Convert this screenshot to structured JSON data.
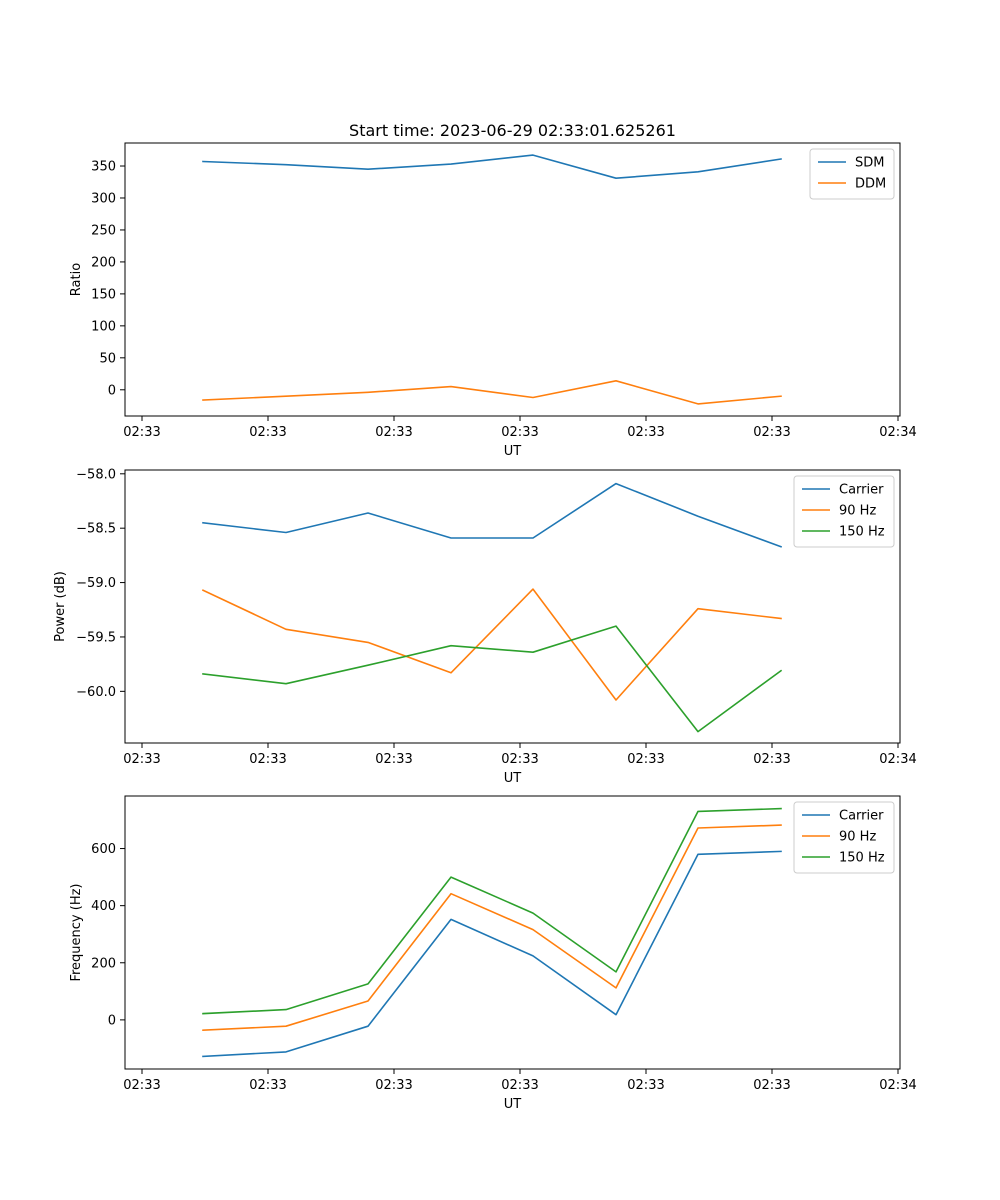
{
  "figure": {
    "title": "Start time: 2023-06-29 02:33:01.625261"
  },
  "chart_data": [
    {
      "type": "line",
      "xlabel": "UT",
      "ylabel": "Ratio",
      "x_tick_labels": [
        "02:33",
        "02:33",
        "02:33",
        "02:33",
        "02:33",
        "02:33",
        "02:34"
      ],
      "y_ticks": [
        0,
        50,
        100,
        150,
        200,
        250,
        300,
        350
      ],
      "y_tick_labels": [
        "0",
        "50",
        "100",
        "150",
        "200",
        "250",
        "300",
        "350"
      ],
      "ylim": [
        -41,
        386
      ],
      "legend": "top-right",
      "series": [
        {
          "name": "SDM",
          "color": "#1f77b4",
          "values": [
            357,
            352,
            345,
            353,
            367,
            331,
            341,
            361
          ]
        },
        {
          "name": "DDM",
          "color": "#ff7f0e",
          "values": [
            -16,
            -10,
            -4,
            5,
            -12,
            14,
            -22,
            -10
          ]
        }
      ]
    },
    {
      "type": "line",
      "xlabel": "UT",
      "ylabel": "Power (dB)",
      "x_tick_labels": [
        "02:33",
        "02:33",
        "02:33",
        "02:33",
        "02:33",
        "02:33",
        "02:34"
      ],
      "y_ticks": [
        -60.0,
        -59.5,
        -59.0,
        -58.5,
        -58.0
      ],
      "y_tick_labels": [
        "−60.0",
        "−59.5",
        "−59.0",
        "−58.5",
        "−58.0"
      ],
      "ylim": [
        -60.475,
        -57.965
      ],
      "legend": "top-right",
      "series": [
        {
          "name": "Carrier",
          "color": "#1f77b4",
          "values": [
            -58.45,
            -58.54,
            -58.36,
            -58.59,
            -58.59,
            -58.09,
            -58.39,
            -58.67
          ]
        },
        {
          "name": "90 Hz",
          "color": "#ff7f0e",
          "values": [
            -59.07,
            -59.43,
            -59.55,
            -59.83,
            -59.06,
            -60.08,
            -59.24,
            -59.33
          ]
        },
        {
          "name": "150 Hz",
          "color": "#2ca02c",
          "values": [
            -59.84,
            -59.93,
            -59.76,
            -59.58,
            -59.64,
            -59.4,
            -60.37,
            -59.81
          ]
        }
      ]
    },
    {
      "type": "line",
      "xlabel": "UT",
      "ylabel": "Frequency (Hz)",
      "x_tick_labels": [
        "02:33",
        "02:33",
        "02:33",
        "02:33",
        "02:33",
        "02:33",
        "02:34"
      ],
      "y_ticks": [
        0,
        200,
        400,
        600
      ],
      "y_tick_labels": [
        "0",
        "200",
        "400",
        "600"
      ],
      "ylim": [
        -172,
        784
      ],
      "legend": "top-right",
      "series": [
        {
          "name": "Carrier",
          "color": "#1f77b4",
          "values": [
            -128,
            -112,
            -22,
            352,
            224,
            18,
            580,
            590
          ]
        },
        {
          "name": "90 Hz",
          "color": "#ff7f0e",
          "values": [
            -36,
            -22,
            66,
            442,
            316,
            112,
            672,
            682
          ]
        },
        {
          "name": "150 Hz",
          "color": "#2ca02c",
          "values": [
            22,
            36,
            126,
            500,
            374,
            168,
            730,
            740
          ]
        }
      ]
    }
  ]
}
